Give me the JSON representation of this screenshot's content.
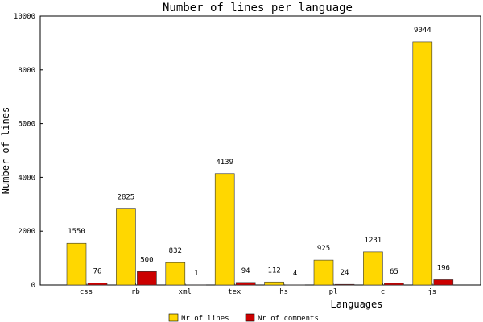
{
  "chart_data": {
    "type": "bar",
    "title": "Number of lines per language",
    "xlabel": "Languages",
    "ylabel": "Number of lines",
    "ylim": [
      0,
      10000
    ],
    "y_ticks": [
      "0",
      "2000",
      "4000",
      "6000",
      "8000",
      "10000"
    ],
    "categories": [
      "css",
      "rb",
      "xml",
      "tex",
      "hs",
      "pl",
      "c",
      "js"
    ],
    "series": [
      {
        "name": "Nr of lines",
        "color": "#ffd700",
        "values": [
          1550,
          2825,
          832,
          4139,
          112,
          925,
          1231,
          9044
        ],
        "labels": [
          "1550",
          "2825",
          "832",
          "4139",
          "112",
          "925",
          "1231",
          "9044"
        ]
      },
      {
        "name": "Nr of comments",
        "color": "#cc0000",
        "values": [
          76,
          500,
          1,
          94,
          4,
          24,
          65,
          196
        ],
        "labels": [
          "76",
          "500",
          "1",
          "94",
          "4",
          "24",
          "65",
          "196"
        ]
      }
    ],
    "legend_position": "bottom",
    "grid": false
  }
}
